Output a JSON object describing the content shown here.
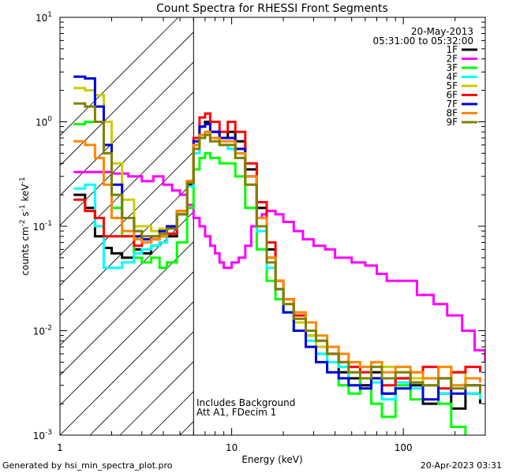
{
  "chart_data": {
    "type": "line",
    "title": "Count Spectra for RHESSI Front Segments",
    "xlabel": "Energy (keV)",
    "ylabel": "counts cm^-2 s^-1 keV^-1",
    "xscale": "log",
    "yscale": "log",
    "xlim": [
      1,
      300
    ],
    "ylim": [
      0.001,
      10
    ],
    "x_ticks": [
      {
        "value": 1,
        "label": "1"
      },
      {
        "value": 10,
        "label": "10"
      },
      {
        "value": 100,
        "label": "100"
      }
    ],
    "y_ticks": [
      {
        "value": 0.001,
        "mant": "10",
        "exp": "-3"
      },
      {
        "value": 0.01,
        "mant": "10",
        "exp": "-2"
      },
      {
        "value": 0.1,
        "mant": "10",
        "exp": "-1"
      },
      {
        "value": 1,
        "mant": "10",
        "exp": "0"
      },
      {
        "value": 10,
        "mant": "10",
        "exp": "1"
      }
    ],
    "date": "20-May-2013",
    "time_range": "05:31:00 to 05:32:00",
    "annotations": [
      "Includes Background",
      "Att A1, FDecim 1"
    ],
    "shaded_below_keV": 6,
    "footer_left": "Generated by hsi_min_spectra_plot.pro",
    "footer_right": "20-Apr-2023 03:31",
    "series": [
      {
        "name": "1F",
        "color": "#000000",
        "x": [
          1.2,
          1.4,
          1.6,
          1.8,
          2.0,
          2.3,
          2.7,
          3.0,
          3.4,
          3.8,
          4.2,
          4.8,
          5.5,
          6.0,
          6.5,
          7.0,
          7.5,
          8.5,
          9.5,
          10.5,
          12,
          14,
          16,
          18,
          20,
          23,
          27,
          31,
          36,
          42,
          48,
          56,
          65,
          75,
          90,
          110,
          130,
          160,
          190,
          230,
          280
        ],
        "y": [
          0.2,
          0.15,
          0.08,
          0.062,
          0.055,
          0.05,
          0.06,
          0.055,
          0.065,
          0.07,
          0.08,
          0.13,
          0.25,
          0.6,
          0.9,
          1.0,
          0.8,
          0.7,
          0.8,
          0.65,
          0.35,
          0.15,
          0.06,
          0.03,
          0.02,
          0.012,
          0.009,
          0.007,
          0.006,
          0.004,
          0.0035,
          0.003,
          0.004,
          0.0025,
          0.0035,
          0.003,
          0.002,
          0.0025,
          0.0018,
          0.0025,
          0.002
        ]
      },
      {
        "name": "2F",
        "color": "#ff00ff",
        "x": [
          1.2,
          1.5,
          2.0,
          2.5,
          3.0,
          3.5,
          4.0,
          4.5,
          5.0,
          5.5,
          6.0,
          6.5,
          7.0,
          7.5,
          8.0,
          8.5,
          9.0,
          9.5,
          10,
          11,
          12,
          13,
          14,
          15,
          16,
          18,
          20,
          23,
          26,
          30,
          35,
          40,
          50,
          60,
          70,
          80,
          100,
          120,
          150,
          180,
          220,
          260,
          300
        ],
        "y": [
          0.33,
          0.33,
          0.32,
          0.3,
          0.27,
          0.3,
          0.25,
          0.22,
          0.2,
          0.16,
          0.12,
          0.1,
          0.08,
          0.065,
          0.055,
          0.045,
          0.04,
          0.04,
          0.045,
          0.05,
          0.065,
          0.1,
          0.12,
          0.13,
          0.14,
          0.13,
          0.11,
          0.09,
          0.075,
          0.065,
          0.06,
          0.05,
          0.045,
          0.042,
          0.035,
          0.03,
          0.03,
          0.022,
          0.018,
          0.014,
          0.01,
          0.0065,
          0.005
        ]
      },
      {
        "name": "3F",
        "color": "#00ff00",
        "x": [
          1.2,
          1.4,
          1.6,
          1.8,
          2.0,
          2.3,
          2.7,
          3.0,
          3.4,
          3.8,
          4.2,
          4.8,
          5.5,
          6.0,
          6.5,
          7.0,
          7.5,
          8.5,
          9.5,
          10.5,
          12,
          14,
          16,
          18,
          20,
          23,
          27,
          31,
          36,
          42,
          48,
          56,
          65,
          75,
          90,
          110,
          130,
          160,
          190,
          230
        ],
        "y": [
          0.95,
          1.0,
          1.0,
          0.5,
          0.15,
          0.08,
          0.05,
          0.045,
          0.05,
          0.04,
          0.045,
          0.07,
          0.15,
          0.35,
          0.45,
          0.5,
          0.45,
          0.4,
          0.4,
          0.3,
          0.15,
          0.06,
          0.03,
          0.02,
          0.015,
          0.012,
          0.009,
          0.006,
          0.004,
          0.003,
          0.0025,
          0.0035,
          0.002,
          0.0015,
          0.003,
          0.0022,
          0.0035,
          0.002,
          0.0012,
          0.0009
        ]
      },
      {
        "name": "4F",
        "color": "#00ffff",
        "x": [
          1.2,
          1.4,
          1.6,
          1.8,
          2.0,
          2.3,
          2.7,
          3.0,
          3.4,
          3.8,
          4.2,
          4.8,
          5.5,
          6.0,
          6.5,
          7.0,
          7.5,
          8.5,
          9.5,
          10.5,
          12,
          14,
          16,
          18,
          20,
          23,
          27,
          31,
          36,
          42,
          48,
          56,
          65,
          75,
          90,
          110,
          130,
          160,
          190,
          230,
          280
        ],
        "y": [
          0.23,
          0.25,
          0.1,
          0.04,
          0.04,
          0.045,
          0.055,
          0.06,
          0.065,
          0.07,
          0.085,
          0.13,
          0.24,
          0.5,
          0.7,
          0.75,
          0.7,
          0.6,
          0.55,
          0.45,
          0.25,
          0.09,
          0.04,
          0.025,
          0.015,
          0.01,
          0.008,
          0.006,
          0.005,
          0.0045,
          0.003,
          0.0028,
          0.0032,
          0.0022,
          0.0032,
          0.0028,
          0.003,
          0.0025,
          0.003,
          0.0025,
          0.0022
        ]
      },
      {
        "name": "5F",
        "color": "#cccc00",
        "x": [
          1.2,
          1.4,
          1.6,
          1.8,
          2.0,
          2.3,
          2.7,
          3.0,
          3.4,
          3.8,
          4.2,
          4.8,
          5.5,
          6.0,
          6.5,
          7.0,
          7.5,
          8.5,
          9.5,
          10.5,
          12,
          14,
          16,
          18,
          20,
          23,
          27,
          31,
          36,
          42,
          48,
          56,
          65,
          75,
          90,
          110,
          130,
          160,
          190,
          230,
          280
        ],
        "y": [
          2.1,
          2.0,
          1.8,
          1.0,
          0.4,
          0.18,
          0.1,
          0.1,
          0.09,
          0.095,
          0.1,
          0.14,
          0.27,
          0.6,
          0.75,
          0.8,
          0.7,
          0.6,
          0.6,
          0.5,
          0.25,
          0.1,
          0.05,
          0.03,
          0.018,
          0.012,
          0.009,
          0.007,
          0.006,
          0.005,
          0.004,
          0.0045,
          0.0035,
          0.0045,
          0.004,
          0.0035,
          0.003,
          0.0045,
          0.004,
          0.003,
          0.0028
        ]
      },
      {
        "name": "6F",
        "color": "#ff0000",
        "x": [
          1.2,
          1.4,
          1.6,
          1.8,
          2.0,
          2.3,
          2.7,
          3.0,
          3.4,
          3.8,
          4.2,
          4.8,
          5.5,
          6.0,
          6.5,
          7.0,
          7.5,
          8.5,
          9.5,
          10.5,
          12,
          14,
          16,
          18,
          20,
          23,
          27,
          31,
          36,
          42,
          48,
          56,
          65,
          75,
          90,
          110,
          130,
          160,
          190,
          230,
          280
        ],
        "y": [
          0.18,
          0.14,
          0.12,
          0.08,
          0.08,
          0.08,
          0.065,
          0.07,
          0.075,
          0.08,
          0.085,
          0.13,
          0.27,
          0.7,
          1.1,
          1.2,
          1.0,
          0.8,
          1.0,
          0.8,
          0.4,
          0.17,
          0.07,
          0.03,
          0.02,
          0.014,
          0.01,
          0.008,
          0.006,
          0.005,
          0.0045,
          0.004,
          0.0035,
          0.003,
          0.0035,
          0.004,
          0.0045,
          0.0028,
          0.004,
          0.0045,
          0.004
        ]
      },
      {
        "name": "7F",
        "color": "#0000dd",
        "x": [
          1.2,
          1.4,
          1.6,
          1.8,
          2.0,
          2.3,
          2.7,
          3.0,
          3.4,
          3.8,
          4.2,
          4.8,
          5.5,
          6.0,
          6.5,
          7.0,
          7.5,
          8.5,
          9.5,
          10.5,
          12,
          14,
          16,
          18,
          20,
          23,
          27,
          31,
          36,
          42,
          48,
          56,
          65,
          75,
          90,
          110,
          130,
          160,
          190,
          230,
          280
        ],
        "y": [
          2.7,
          2.6,
          1.4,
          0.6,
          0.25,
          0.12,
          0.08,
          0.075,
          0.08,
          0.09,
          0.1,
          0.14,
          0.26,
          0.65,
          0.9,
          0.95,
          0.8,
          0.7,
          0.7,
          0.55,
          0.3,
          0.12,
          0.05,
          0.025,
          0.015,
          0.01,
          0.007,
          0.005,
          0.004,
          0.0035,
          0.003,
          0.0028,
          0.0035,
          0.0025,
          0.0028,
          0.0032,
          0.0022,
          0.0035,
          0.0025,
          0.003,
          0.0025
        ]
      },
      {
        "name": "8F",
        "color": "#ff8800",
        "x": [
          1.2,
          1.4,
          1.6,
          1.8,
          2.0,
          2.3,
          2.7,
          3.0,
          3.4,
          3.8,
          4.2,
          4.8,
          5.5,
          6.0,
          6.5,
          7.0,
          7.5,
          8.5,
          9.5,
          10.5,
          12,
          14,
          16,
          18,
          20,
          23,
          27,
          31,
          36,
          42,
          48,
          56,
          65,
          75,
          90,
          110,
          130,
          160,
          190,
          230,
          280
        ],
        "y": [
          0.65,
          0.6,
          0.45,
          0.25,
          0.12,
          0.09,
          0.075,
          0.07,
          0.075,
          0.08,
          0.095,
          0.14,
          0.27,
          0.6,
          0.75,
          0.8,
          0.7,
          0.65,
          0.65,
          0.5,
          0.3,
          0.12,
          0.05,
          0.03,
          0.02,
          0.015,
          0.012,
          0.009,
          0.007,
          0.006,
          0.005,
          0.0045,
          0.005,
          0.004,
          0.0045,
          0.004,
          0.0035,
          0.0045,
          0.003,
          0.0035,
          0.0032
        ]
      },
      {
        "name": "9F",
        "color": "#808000",
        "x": [
          1.2,
          1.4,
          1.6,
          1.8,
          2.0,
          2.3,
          2.7,
          3.0,
          3.4,
          3.8,
          4.2,
          4.8,
          5.5,
          6.0,
          6.5,
          7.0,
          7.5,
          8.5,
          9.5,
          10.5,
          12,
          14,
          16,
          18,
          20,
          23,
          27,
          31,
          36,
          42,
          48,
          56,
          65,
          75,
          90,
          110,
          130,
          160,
          190,
          230,
          280
        ],
        "y": [
          1.5,
          1.4,
          1.0,
          0.5,
          0.2,
          0.12,
          0.09,
          0.08,
          0.08,
          0.085,
          0.095,
          0.13,
          0.26,
          0.55,
          0.7,
          0.75,
          0.65,
          0.6,
          0.6,
          0.45,
          0.25,
          0.1,
          0.045,
          0.025,
          0.018,
          0.013,
          0.01,
          0.008,
          0.006,
          0.005,
          0.004,
          0.0035,
          0.0045,
          0.0035,
          0.004,
          0.0032,
          0.003,
          0.0035,
          0.0028,
          0.003,
          0.0025
        ]
      }
    ]
  }
}
